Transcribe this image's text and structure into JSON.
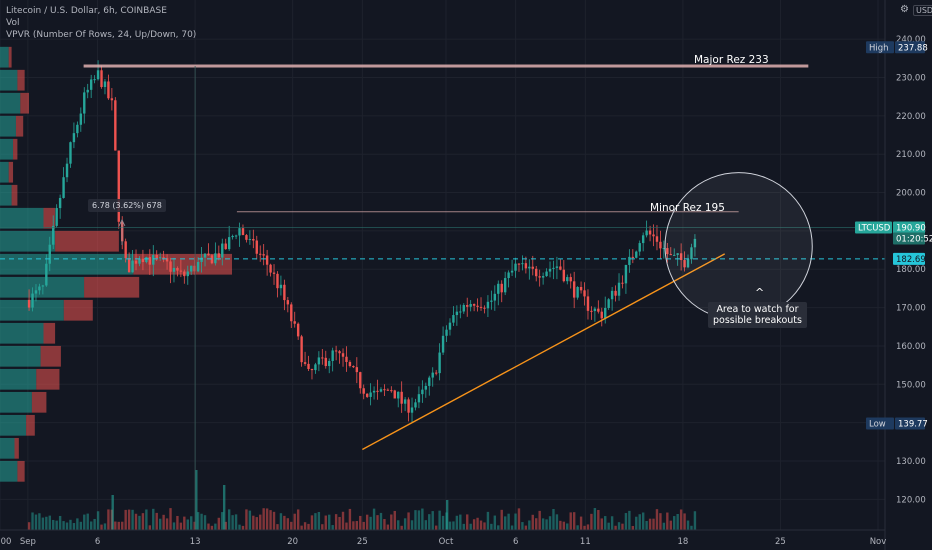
{
  "legend": {
    "symbol": "Litecoin / U.S. Dollar, 6h, COINBASE",
    "vol": "Vol",
    "vpvr": "VPVR (Number Of Rows, 24, Up/Down, 70)"
  },
  "icons": {
    "gear": "gear-icon"
  },
  "currency_label": "USD",
  "annotations": {
    "major": "Major Rez 233",
    "minor": "Minor Rez 195",
    "callout_line1": "Area to watch for",
    "callout_line2": "possible breakouts",
    "measure": "6.78 (3.62%) 678"
  },
  "price_labels": {
    "high_label": "High",
    "high_value": "237.88",
    "low_label": "Low",
    "low_value": "139.77",
    "ticker": "LTCUSD",
    "last": "190.90",
    "countdown": "01:20:52",
    "dashed": "182.69"
  },
  "colors": {
    "background": "#131722",
    "up": "#26a69a",
    "down": "#ef5350",
    "trendline": "#f7931a",
    "resistance": "#e0b0b0",
    "dashed": "#26c6da"
  },
  "chart_data": {
    "type": "candlestick",
    "title": "Litecoin / U.S. Dollar, 6h, COINBASE",
    "ylim": [
      112,
      245
    ],
    "y_ticks": [
      120,
      130,
      140,
      150,
      160,
      170,
      180,
      190,
      200,
      210,
      220,
      230,
      240
    ],
    "y_tick_labels": [
      "120.00",
      "130.00",
      "140.00",
      "150.00",
      "160.00",
      "170.00",
      "180.00",
      "190.00",
      "200.00",
      "210.00",
      "220.00",
      "230.00",
      "240.00"
    ],
    "x_tick_labels": [
      "00",
      "Sep",
      "6",
      "13",
      "20",
      "25",
      "Oct",
      "6",
      "11",
      "18",
      "25",
      "Nov"
    ],
    "x_range": [
      "2021-08-30",
      "2021-11-01"
    ],
    "x_ticks": [
      "2021-08-30",
      "2021-09-01",
      "2021-09-06",
      "2021-09-13",
      "2021-09-20",
      "2021-09-25",
      "2021-10-01",
      "2021-10-06",
      "2021-10-11",
      "2021-10-18",
      "2021-10-25",
      "2021-11-01"
    ],
    "path_points": [
      [
        "2021-09-01",
        172
      ],
      [
        "2021-09-02",
        175
      ],
      [
        "2021-09-03",
        195
      ],
      [
        "2021-09-04",
        212
      ],
      [
        "2021-09-05",
        225
      ],
      [
        "2021-09-06",
        231
      ],
      [
        "2021-09-07",
        222
      ],
      [
        "2021-09-07T12:00",
        190
      ],
      [
        "2021-09-08",
        180
      ],
      [
        "2021-09-09",
        184
      ],
      [
        "2021-09-10",
        182
      ],
      [
        "2021-09-11",
        181
      ],
      [
        "2021-09-12",
        178
      ],
      [
        "2021-09-13",
        181
      ],
      [
        "2021-09-14",
        183
      ],
      [
        "2021-09-15",
        185
      ],
      [
        "2021-09-16",
        191
      ],
      [
        "2021-09-17",
        186
      ],
      [
        "2021-09-18",
        182
      ],
      [
        "2021-09-19",
        175
      ],
      [
        "2021-09-20",
        165
      ],
      [
        "2021-09-21",
        152
      ],
      [
        "2021-09-22",
        156
      ],
      [
        "2021-09-23",
        158
      ],
      [
        "2021-09-24",
        154
      ],
      [
        "2021-09-25",
        149
      ],
      [
        "2021-09-26",
        147
      ],
      [
        "2021-09-27",
        149
      ],
      [
        "2021-09-28",
        144
      ],
      [
        "2021-09-29",
        146
      ],
      [
        "2021-09-30",
        152
      ],
      [
        "2021-10-01",
        165
      ],
      [
        "2021-10-02",
        170
      ],
      [
        "2021-10-03",
        172
      ],
      [
        "2021-10-04",
        171
      ],
      [
        "2021-10-05",
        176
      ],
      [
        "2021-10-06",
        181
      ],
      [
        "2021-10-07",
        179
      ],
      [
        "2021-10-08",
        180
      ],
      [
        "2021-10-09",
        181
      ],
      [
        "2021-10-10",
        175
      ],
      [
        "2021-10-11",
        171
      ],
      [
        "2021-10-12",
        168
      ],
      [
        "2021-10-13",
        174
      ],
      [
        "2021-10-14",
        181
      ],
      [
        "2021-10-15",
        190
      ],
      [
        "2021-10-16",
        188
      ],
      [
        "2021-10-17",
        183
      ],
      [
        "2021-10-18",
        182
      ],
      [
        "2021-10-18T18:00",
        188
      ],
      [
        "2021-10-19",
        191
      ]
    ],
    "high": 237.88,
    "low": 139.77,
    "last": 190.9,
    "dashed_level": 182.69,
    "resistance_major": {
      "value": 233,
      "from": "2021-09-05",
      "to": "2021-10-27"
    },
    "resistance_minor": {
      "value": 195,
      "from": "2021-09-16",
      "to": "2021-10-22"
    },
    "trendline": {
      "from": [
        "2021-09-25",
        133
      ],
      "to": [
        "2021-10-21",
        184
      ]
    },
    "circle": {
      "center": [
        "2021-10-22",
        186
      ],
      "radius_value": 12
    },
    "vpvr_rows": [
      {
        "price": 127,
        "up": 12,
        "down": 5
      },
      {
        "price": 133,
        "up": 10,
        "down": 3
      },
      {
        "price": 139,
        "up": 18,
        "down": 6
      },
      {
        "price": 145,
        "up": 22,
        "down": 10
      },
      {
        "price": 151,
        "up": 25,
        "down": 16
      },
      {
        "price": 157,
        "up": 28,
        "down": 14
      },
      {
        "price": 163,
        "up": 30,
        "down": 8
      },
      {
        "price": 169,
        "up": 44,
        "down": 20
      },
      {
        "price": 175,
        "up": 58,
        "down": 38
      },
      {
        "price": 181,
        "up": 92,
        "down": 68
      },
      {
        "price": 187,
        "up": 38,
        "down": 44
      },
      {
        "price": 193,
        "up": 30,
        "down": 8
      },
      {
        "price": 199,
        "up": 8,
        "down": 4
      },
      {
        "price": 205,
        "up": 6,
        "down": 3
      },
      {
        "price": 211,
        "up": 9,
        "down": 3
      },
      {
        "price": 217,
        "up": 11,
        "down": 5
      },
      {
        "price": 223,
        "up": 14,
        "down": 6
      },
      {
        "price": 229,
        "up": 12,
        "down": 5
      },
      {
        "price": 235,
        "up": 6,
        "down": 2
      }
    ]
  }
}
